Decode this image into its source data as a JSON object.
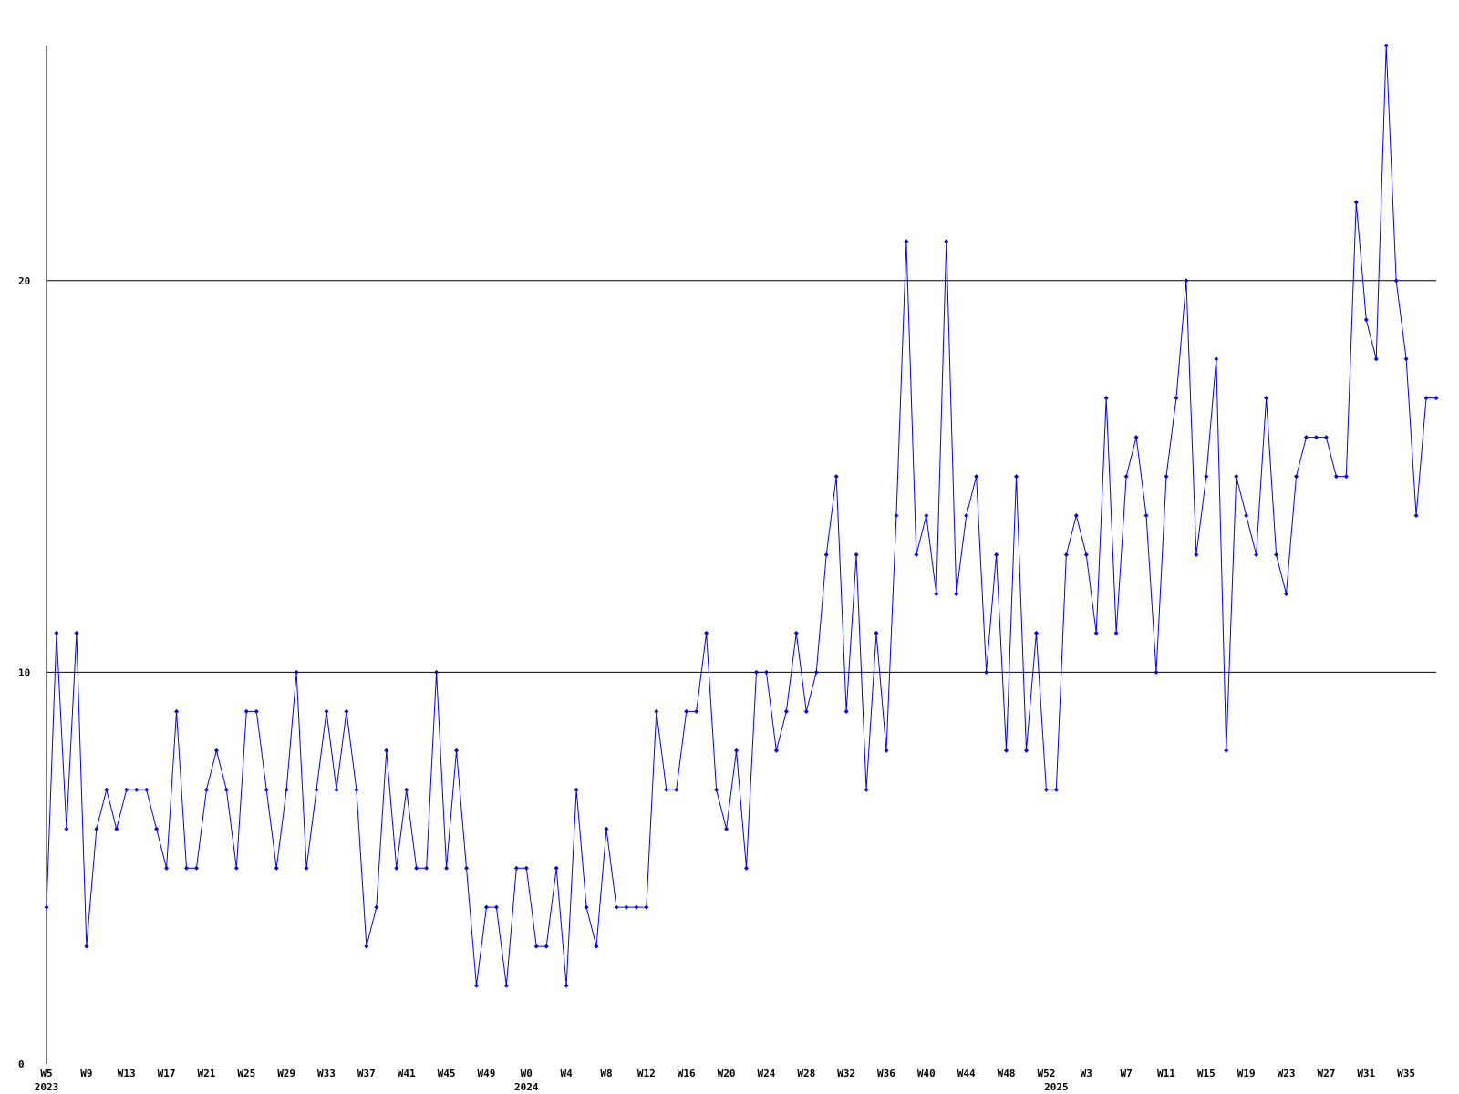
{
  "chart_data": {
    "type": "line",
    "categories": [
      "W5",
      null,
      null,
      null,
      "W9",
      null,
      null,
      null,
      "W13",
      null,
      null,
      null,
      "W17",
      null,
      null,
      null,
      "W21",
      null,
      null,
      null,
      "W25",
      null,
      null,
      null,
      "W29",
      null,
      null,
      null,
      "W33",
      null,
      null,
      null,
      "W37",
      null,
      null,
      null,
      "W41",
      null,
      null,
      null,
      "W45",
      null,
      null,
      null,
      "W49",
      null,
      null,
      null,
      "W0",
      null,
      null,
      null,
      "W4",
      null,
      null,
      null,
      "W8",
      null,
      null,
      null,
      "W12",
      null,
      null,
      null,
      "W16",
      null,
      null,
      null,
      "W20",
      null,
      null,
      null,
      "W24",
      null,
      null,
      null,
      "W28",
      null,
      null,
      null,
      "W32",
      null,
      null,
      null,
      "W36",
      null,
      null,
      null,
      "W40",
      null,
      null,
      null,
      "W44",
      null,
      null,
      null,
      "W48",
      null,
      null,
      null,
      "W52",
      null,
      null,
      null,
      "W3",
      null,
      null,
      null,
      "W7",
      null,
      null,
      null,
      "W11",
      null,
      null,
      null,
      "W15",
      null,
      null,
      null,
      "W19",
      null,
      null,
      null,
      "W23",
      null,
      null,
      null,
      "W27",
      null,
      null,
      null,
      "W31",
      null,
      null,
      null,
      "W35",
      null,
      null,
      null
    ],
    "years": [
      "2023",
      null,
      null,
      null,
      null,
      null,
      null,
      null,
      null,
      null,
      null,
      null,
      null,
      null,
      null,
      null,
      null,
      null,
      null,
      null,
      null,
      null,
      null,
      null,
      null,
      null,
      null,
      null,
      null,
      null,
      null,
      null,
      null,
      null,
      null,
      null,
      null,
      null,
      null,
      null,
      null,
      null,
      null,
      null,
      null,
      null,
      null,
      null,
      "2024",
      null,
      null,
      null,
      null,
      null,
      null,
      null,
      null,
      null,
      null,
      null,
      null,
      null,
      null,
      null,
      null,
      null,
      null,
      null,
      null,
      null,
      null,
      null,
      null,
      null,
      null,
      null,
      null,
      null,
      null,
      null,
      null,
      null,
      null,
      null,
      null,
      null,
      null,
      null,
      null,
      null,
      null,
      null,
      null,
      null,
      null,
      null,
      null,
      null,
      null,
      null,
      null,
      "2025",
      null,
      null,
      null,
      null,
      null,
      null,
      null,
      null,
      null,
      null,
      null,
      null,
      null,
      null,
      null,
      null,
      null,
      null,
      null,
      null,
      null,
      null,
      null,
      null,
      null,
      null,
      null,
      null,
      null,
      null,
      null,
      null,
      null,
      null,
      null,
      null,
      null,
      null
    ],
    "series": [
      {
        "color": "#0000ff",
        "values": [
          4,
          11,
          6,
          11,
          3,
          6,
          7,
          6,
          7,
          7,
          7,
          6,
          5,
          9,
          5,
          5,
          7,
          8,
          7,
          5,
          9,
          9,
          7,
          5,
          7,
          10,
          5,
          7,
          9,
          7,
          9,
          7,
          3,
          4,
          8,
          5,
          7,
          5,
          5,
          10,
          5,
          8,
          5,
          2,
          4,
          4,
          2,
          5,
          5,
          3,
          3,
          5,
          2,
          7,
          4,
          3,
          6,
          4,
          4,
          4,
          4,
          9,
          7,
          7,
          9,
          9,
          11,
          7,
          6,
          8,
          5,
          10,
          10,
          8,
          9,
          11,
          9,
          10,
          13,
          15,
          9,
          13,
          7,
          11,
          8,
          14,
          21,
          13,
          14,
          12,
          21,
          12,
          14,
          15,
          10,
          13,
          8,
          15,
          8,
          11,
          7,
          7,
          13,
          14,
          13,
          11,
          17,
          11,
          15,
          16,
          14,
          10,
          15,
          17,
          20,
          13,
          15,
          18,
          8,
          15,
          14,
          13,
          17,
          13,
          12,
          15,
          16,
          16,
          16,
          15,
          15,
          22,
          19,
          18,
          26,
          20,
          18,
          14,
          17,
          17
        ]
      }
    ],
    "ylim": [
      0,
      26
    ],
    "yticks": [
      0,
      10,
      20
    ],
    "grid": true
  }
}
